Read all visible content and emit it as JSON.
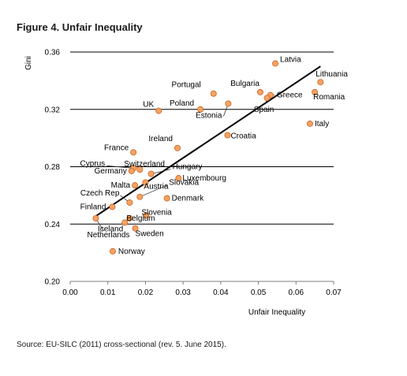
{
  "figure": {
    "title": "Figure 4. Unfair Inequality",
    "source": "Source: EU-SILC (2011) cross-sectional (rev. 5. June 2015)."
  },
  "chart_data": {
    "type": "scatter",
    "xlabel": "Unfair Inequality",
    "ylabel": "Gini",
    "xlim": [
      0,
      0.07
    ],
    "ylim": [
      0.2,
      0.36
    ],
    "x_ticks": [
      "0.00",
      "0.01",
      "0.02",
      "0.03",
      "0.04",
      "0.05",
      "0.06",
      "0.07"
    ],
    "y_ticks": [
      "0.20",
      "0.24",
      "0.28",
      "0.32",
      "0.36"
    ],
    "gridlines": "horizontal",
    "marker_color": "#f4a261",
    "marker_stroke": "#c8662a",
    "trendline": {
      "x": [
        0.0065,
        0.0665
      ],
      "y": [
        0.245,
        0.35
      ]
    },
    "points": [
      {
        "name": "Latvia",
        "x": 0.0545,
        "y": 0.352
      },
      {
        "name": "Lithuania",
        "x": 0.0665,
        "y": 0.339
      },
      {
        "name": "Romania",
        "x": 0.065,
        "y": 0.332
      },
      {
        "name": "Portugal",
        "x": 0.0381,
        "y": 0.331
      },
      {
        "name": "Bulgaria",
        "x": 0.0505,
        "y": 0.332
      },
      {
        "name": "Greece",
        "x": 0.0532,
        "y": 0.33
      },
      {
        "name": "Spain",
        "x": 0.0523,
        "y": 0.328
      },
      {
        "name": "Italy",
        "x": 0.0637,
        "y": 0.31
      },
      {
        "name": "UK",
        "x": 0.0235,
        "y": 0.319
      },
      {
        "name": "Poland",
        "x": 0.0346,
        "y": 0.32
      },
      {
        "name": "Estonia",
        "x": 0.042,
        "y": 0.324
      },
      {
        "name": "Croatia",
        "x": 0.0418,
        "y": 0.302
      },
      {
        "name": "Ireland",
        "x": 0.0285,
        "y": 0.293
      },
      {
        "name": "France",
        "x": 0.0168,
        "y": 0.29
      },
      {
        "name": "Cyprus",
        "x": 0.0168,
        "y": 0.279
      },
      {
        "name": "Switzerland",
        "x": 0.0185,
        "y": 0.278
      },
      {
        "name": "Germany",
        "x": 0.0163,
        "y": 0.277
      },
      {
        "name": "Hungary",
        "x": 0.0215,
        "y": 0.275
      },
      {
        "name": "Luxembourg",
        "x": 0.0288,
        "y": 0.272
      },
      {
        "name": "Malta",
        "x": 0.0172,
        "y": 0.267
      },
      {
        "name": "Austria",
        "x": 0.02,
        "y": 0.269
      },
      {
        "name": "Slovakia",
        "x": 0.0185,
        "y": 0.259
      },
      {
        "name": "Denmark",
        "x": 0.0257,
        "y": 0.258
      },
      {
        "name": "Czech Rep",
        "x": 0.0158,
        "y": 0.255
      },
      {
        "name": "Finland",
        "x": 0.0112,
        "y": 0.252
      },
      {
        "name": "Slovenia",
        "x": 0.0202,
        "y": 0.246
      },
      {
        "name": "Belgium",
        "x": 0.0158,
        "y": 0.244
      },
      {
        "name": "Iceland",
        "x": 0.0145,
        "y": 0.241
      },
      {
        "name": "Netherlands",
        "x": 0.0068,
        "y": 0.244
      },
      {
        "name": "Sweden",
        "x": 0.0173,
        "y": 0.237
      },
      {
        "name": "Norway",
        "x": 0.0113,
        "y": 0.221
      }
    ]
  }
}
